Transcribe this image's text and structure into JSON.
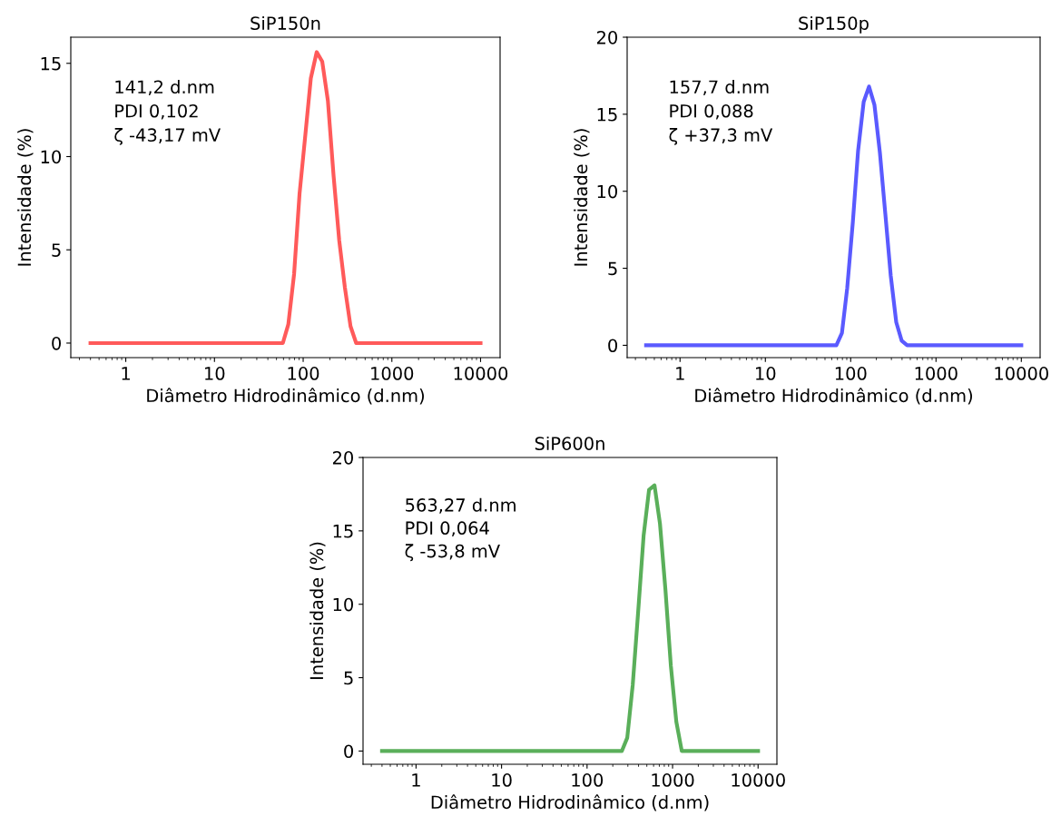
{
  "chart_data": [
    {
      "type": "line",
      "title": "SiP150n",
      "xlabel": "Diâmetro Hidrodinâmico (d.nm)",
      "ylabel": "Intensidade (%)",
      "log": "x",
      "grid": false,
      "legend": false,
      "marker": "none",
      "line_style": "solid",
      "xlim": [
        0.24,
        16600
      ],
      "ylim": [
        -0.78,
        16.4
      ],
      "xticks": [
        1,
        10,
        100,
        1000,
        10000
      ],
      "yticks": [
        0,
        5,
        10,
        15
      ],
      "annotations": [
        "141,2 d.nm",
        "PDI 0,102",
        "ζ -43,17 mV"
      ],
      "series": [
        {
          "color": "#ff5a5a",
          "x": [
            0.4,
            59,
            68,
            79,
            91,
            106,
            122,
            142,
            164,
            190,
            220,
            255,
            295,
            342,
            396,
            10000
          ],
          "values": [
            0,
            0,
            1,
            3.7,
            8,
            11.2,
            14.2,
            15.6,
            15.1,
            13,
            9,
            5.5,
            3,
            0.9,
            0,
            0
          ]
        }
      ]
    },
    {
      "type": "line",
      "title": "SiP150p",
      "xlabel": "Diâmetro Hidrodinâmico (d.nm)",
      "ylabel": "Intensidade (%)",
      "log": "x",
      "grid": false,
      "legend": false,
      "marker": "none",
      "line_style": "solid",
      "xlim": [
        0.24,
        16600
      ],
      "ylim": [
        -0.8,
        20
      ],
      "xticks": [
        1,
        10,
        100,
        1000,
        10000
      ],
      "yticks": [
        0,
        5,
        10,
        15,
        20
      ],
      "annotations": [
        "157,7 d.nm",
        "PDI 0,088",
        "ζ +37,3 mV"
      ],
      "series": [
        {
          "color": "#5a5aff",
          "x": [
            0.4,
            68,
            79,
            91,
            106,
            122,
            142,
            164,
            190,
            220,
            255,
            295,
            342,
            396,
            459,
            10000
          ],
          "values": [
            0,
            0,
            0.8,
            3.7,
            8,
            12.6,
            15.8,
            16.8,
            15.6,
            12.5,
            8.5,
            4.5,
            1.5,
            0.3,
            0,
            0
          ]
        }
      ]
    },
    {
      "type": "line",
      "title": "SiP600n",
      "xlabel": "Diâmetro Hidrodinâmico (d.nm)",
      "ylabel": "Intensidade (%)",
      "log": "x",
      "grid": false,
      "legend": false,
      "marker": "none",
      "line_style": "solid",
      "xlim": [
        0.24,
        16600
      ],
      "ylim": [
        -0.9,
        20
      ],
      "xticks": [
        1,
        10,
        100,
        1000,
        10000
      ],
      "yticks": [
        0,
        5,
        10,
        15,
        20
      ],
      "annotations": [
        "563,27 d.nm",
        "PDI 0,064",
        "ζ -53,8 mV"
      ],
      "series": [
        {
          "color": "#5aaf5a",
          "x": [
            0.4,
            255,
            295,
            342,
            396,
            459,
            531,
            615,
            712,
            825,
            955,
            1106,
            1281,
            10000
          ],
          "values": [
            0,
            0,
            0.9,
            4.5,
            9.5,
            14.7,
            17.8,
            18.1,
            15.5,
            11,
            5.8,
            2,
            0,
            0
          ]
        }
      ]
    }
  ]
}
